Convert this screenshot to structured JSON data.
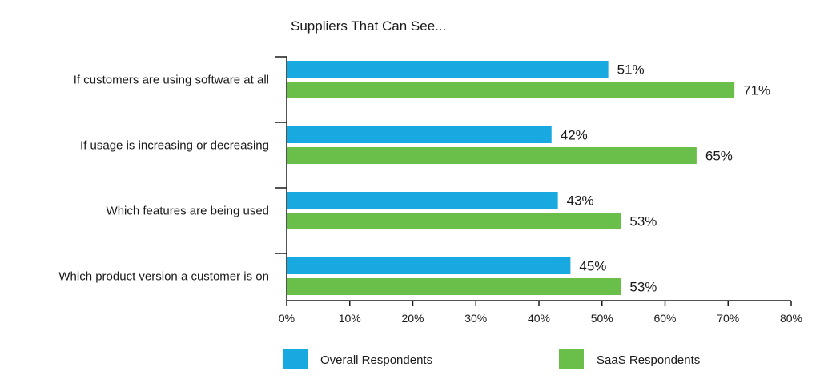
{
  "chart_data": {
    "type": "bar",
    "orientation": "horizontal",
    "title": "Suppliers That Can See...",
    "xlabel": "",
    "ylabel": "",
    "categories": [
      "If customers are using software at all",
      "If usage is increasing or decreasing",
      "Which features are being used",
      "Which product version a customer is on"
    ],
    "series": [
      {
        "name": "Overall Respondents",
        "color": "#19a9e1",
        "values": [
          51,
          42,
          43,
          45
        ]
      },
      {
        "name": "SaaS Respondents",
        "color": "#6abf4b",
        "values": [
          71,
          65,
          53,
          53
        ]
      }
    ],
    "value_suffix": "%",
    "xlim": [
      0,
      80
    ],
    "xticks": [
      0,
      10,
      20,
      30,
      40,
      50,
      60,
      70,
      80
    ],
    "xtick_labels": [
      "0%",
      "10%",
      "20%",
      "30%",
      "40%",
      "50%",
      "60%",
      "70%",
      "80%"
    ],
    "grid": false,
    "legend_position": "bottom"
  }
}
